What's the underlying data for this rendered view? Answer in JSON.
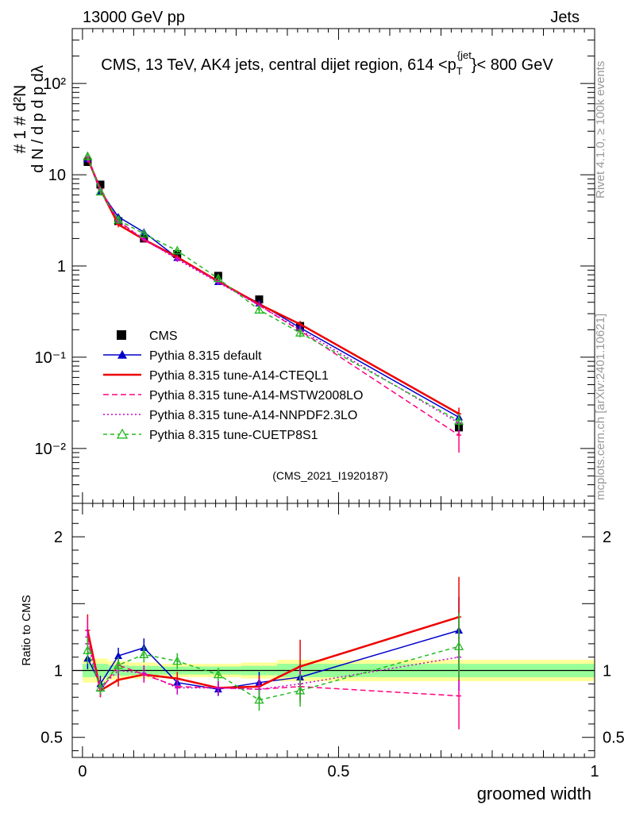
{
  "header": {
    "left": "13000 GeV pp",
    "right": "Jets"
  },
  "side_labels": {
    "top": "Rivet 4.1.0, ≥ 100k events",
    "bottom": "mcplots.cern.ch [arXiv:2401.10621]"
  },
  "analysis_id": "(CMS_2021_I1920187)",
  "colors": {
    "cms": "#000000",
    "default": "#0000cc",
    "cteql1": "#ee0000",
    "mstw": "#ff0080",
    "nnpdf": "#cc00cc",
    "cuetp8s1": "#22bb22",
    "band_yellow": "#ffff99",
    "band_green": "#99ff99"
  },
  "chart_data": [
    {
      "type": "line",
      "title": "CMS, 13 TeV, AK4 jets, central dijet region, 614 <p_T^{jet}< 800 GeV",
      "ylabel": "1/dN/dp_T dN^2/dp_T dλ",
      "yscale": "log",
      "ylim": [
        0.0025,
        400
      ],
      "xlim": [
        -0.02,
        1.0
      ],
      "y_ticks": [
        {
          "value": 0.01,
          "label": "10⁻²"
        },
        {
          "value": 0.1,
          "label": "10⁻¹"
        },
        {
          "value": 1,
          "label": "1"
        },
        {
          "value": 10,
          "label": "10"
        },
        {
          "value": 100,
          "label": "10²"
        }
      ],
      "x": [
        0.01,
        0.035,
        0.07,
        0.12,
        0.185,
        0.265,
        0.345,
        0.425,
        0.735
      ],
      "series": [
        {
          "name": "CMS",
          "key": "cms",
          "marker": "square",
          "dash": "none",
          "values": [
            13.8,
            7.8,
            3.1,
            2.0,
            1.35,
            0.78,
            0.43,
            0.22,
            0.017
          ],
          "err": [
            0.8,
            0.4,
            0.15,
            0.1,
            0.07,
            0.04,
            0.03,
            0.02,
            0.003
          ]
        },
        {
          "name": "Pythia 8.315 default",
          "key": "default",
          "marker": "triangle-filled",
          "dash": "none",
          "values": [
            15.0,
            6.6,
            3.45,
            2.35,
            1.23,
            0.67,
            0.39,
            0.21,
            0.022
          ],
          "err": [
            1.5,
            0.4,
            0.2,
            0.12,
            0.07,
            0.04,
            0.03,
            0.02,
            0.003
          ]
        },
        {
          "name": "Pythia 8.315 tune-A14-CTEQL1",
          "key": "cteql1",
          "marker": "none",
          "dash": "none",
          "values": [
            15.2,
            6.9,
            2.85,
            1.95,
            1.25,
            0.68,
            0.38,
            0.23,
            0.024
          ],
          "err": [
            1.5,
            0.4,
            0.2,
            0.12,
            0.07,
            0.04,
            0.03,
            0.02,
            0.004
          ]
        },
        {
          "name": "Pythia 8.315 tune-A14-MSTW2008LO",
          "key": "mstw",
          "marker": "none",
          "dash": "7,4",
          "values": [
            15.8,
            7.0,
            3.15,
            1.92,
            1.22,
            0.68,
            0.37,
            0.195,
            0.014
          ],
          "err": [
            2.0,
            0.5,
            0.2,
            0.12,
            0.07,
            0.04,
            0.03,
            0.02,
            0.005
          ]
        },
        {
          "name": "Pythia 8.315 tune-A14-NNPDF2.3LO",
          "key": "nnpdf",
          "marker": "none",
          "dash": "2,3",
          "values": [
            15.5,
            6.8,
            3.05,
            1.98,
            1.18,
            0.66,
            0.37,
            0.2,
            0.019
          ],
          "err": [
            1.8,
            0.4,
            0.2,
            0.12,
            0.07,
            0.04,
            0.03,
            0.02,
            0.004
          ]
        },
        {
          "name": "Pythia 8.315 tune-CUETP8S1",
          "key": "cuetp8s1",
          "marker": "triangle-open",
          "dash": "5,4",
          "values": [
            15.9,
            6.5,
            3.2,
            2.25,
            1.47,
            0.73,
            0.33,
            0.185,
            0.02
          ],
          "err": [
            1.6,
            0.4,
            0.2,
            0.12,
            0.07,
            0.04,
            0.03,
            0.02,
            0.004
          ]
        }
      ],
      "legend": {
        "position": "middle-left"
      }
    },
    {
      "type": "line",
      "ylabel": "Ratio to CMS",
      "xlabel": "groomed width",
      "ylim": [
        0.35,
        2.25
      ],
      "xlim": [
        -0.02,
        1.0
      ],
      "y_ticks": [
        {
          "value": 0.5,
          "label": "0.5"
        },
        {
          "value": 1,
          "label": "1"
        },
        {
          "value": 2,
          "label": "2"
        }
      ],
      "x_ticks": [
        {
          "value": 0,
          "label": "0"
        },
        {
          "value": 0.5,
          "label": "0.5"
        },
        {
          "value": 1,
          "label": "1"
        }
      ],
      "band_edges": [
        0.0,
        0.02,
        0.05,
        0.09,
        0.15,
        0.22,
        0.31,
        0.38,
        0.47,
        1.0
      ],
      "band_yellow": [
        0.09,
        0.09,
        0.07,
        0.06,
        0.05,
        0.05,
        0.06,
        0.08,
        0.08
      ],
      "band_green": [
        0.05,
        0.05,
        0.04,
        0.035,
        0.03,
        0.03,
        0.035,
        0.05,
        0.05
      ],
      "x": [
        0.01,
        0.035,
        0.07,
        0.12,
        0.185,
        0.265,
        0.345,
        0.425,
        0.735
      ],
      "series": [
        {
          "key": "default",
          "marker": "triangle-filled",
          "dash": "none",
          "values": [
            1.09,
            0.9,
            1.11,
            1.17,
            0.91,
            0.86,
            0.91,
            0.95,
            1.3
          ],
          "err": [
            0.08,
            0.06,
            0.06,
            0.07,
            0.05,
            0.05,
            0.08,
            0.1,
            0.25
          ]
        },
        {
          "key": "cteql1",
          "marker": "none",
          "dash": "none",
          "values": [
            1.3,
            0.85,
            0.93,
            0.97,
            0.94,
            0.87,
            0.88,
            1.03,
            1.4
          ],
          "err": [
            0.12,
            0.05,
            0.05,
            0.06,
            0.05,
            0.05,
            0.08,
            0.2,
            0.3
          ]
        },
        {
          "key": "mstw",
          "marker": "none",
          "dash": "7,4",
          "values": [
            1.25,
            0.85,
            1.04,
            0.97,
            0.88,
            0.87,
            0.86,
            0.88,
            0.81
          ],
          "err": [
            0.15,
            0.05,
            0.06,
            0.06,
            0.05,
            0.05,
            0.08,
            0.12,
            0.25
          ]
        },
        {
          "key": "nnpdf",
          "marker": "none",
          "dash": "2,3",
          "values": [
            1.2,
            0.87,
            1.0,
            0.98,
            0.87,
            0.87,
            0.86,
            0.9,
            1.1
          ],
          "err": [
            0.12,
            0.05,
            0.06,
            0.06,
            0.05,
            0.05,
            0.08,
            0.12,
            0.25
          ]
        },
        {
          "key": "cuetp8s1",
          "marker": "triangle-open",
          "dash": "5,4",
          "values": [
            1.15,
            0.87,
            1.04,
            1.12,
            1.07,
            0.97,
            0.78,
            0.85,
            1.18
          ],
          "err": [
            0.1,
            0.05,
            0.06,
            0.06,
            0.06,
            0.05,
            0.08,
            0.12,
            0.25
          ]
        }
      ]
    }
  ]
}
